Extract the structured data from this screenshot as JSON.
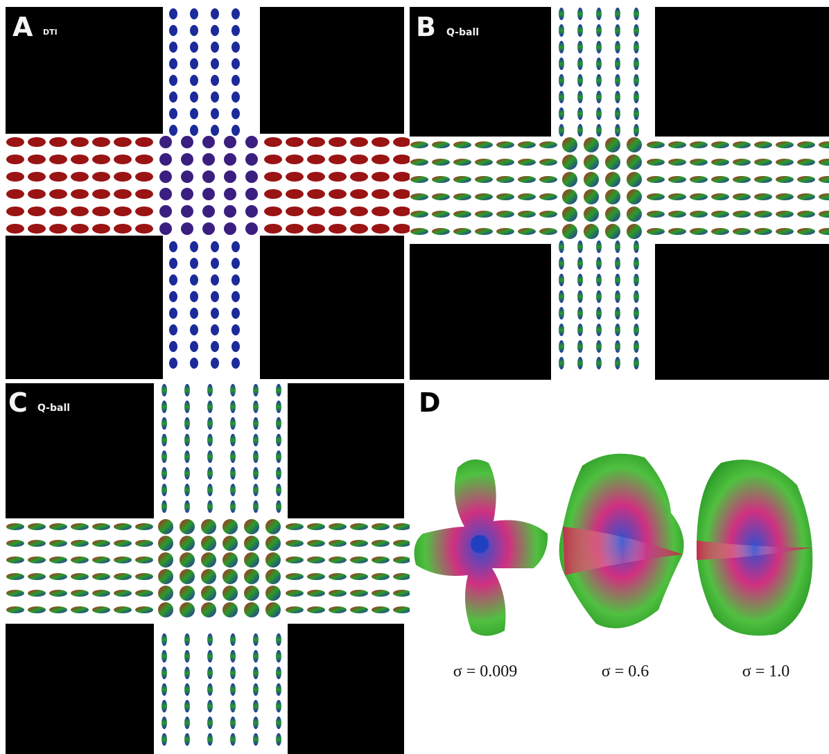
{
  "panels": [
    {
      "letter": "A",
      "subtitle": "DTI"
    },
    {
      "letter": "B",
      "subtitle": "Q-ball"
    },
    {
      "letter": "C",
      "subtitle": "Q-ball"
    },
    {
      "letter": "D",
      "glyph_labels": [
        "σ = 0.009",
        "σ = 0.6",
        "σ = 1.0"
      ]
    }
  ]
}
